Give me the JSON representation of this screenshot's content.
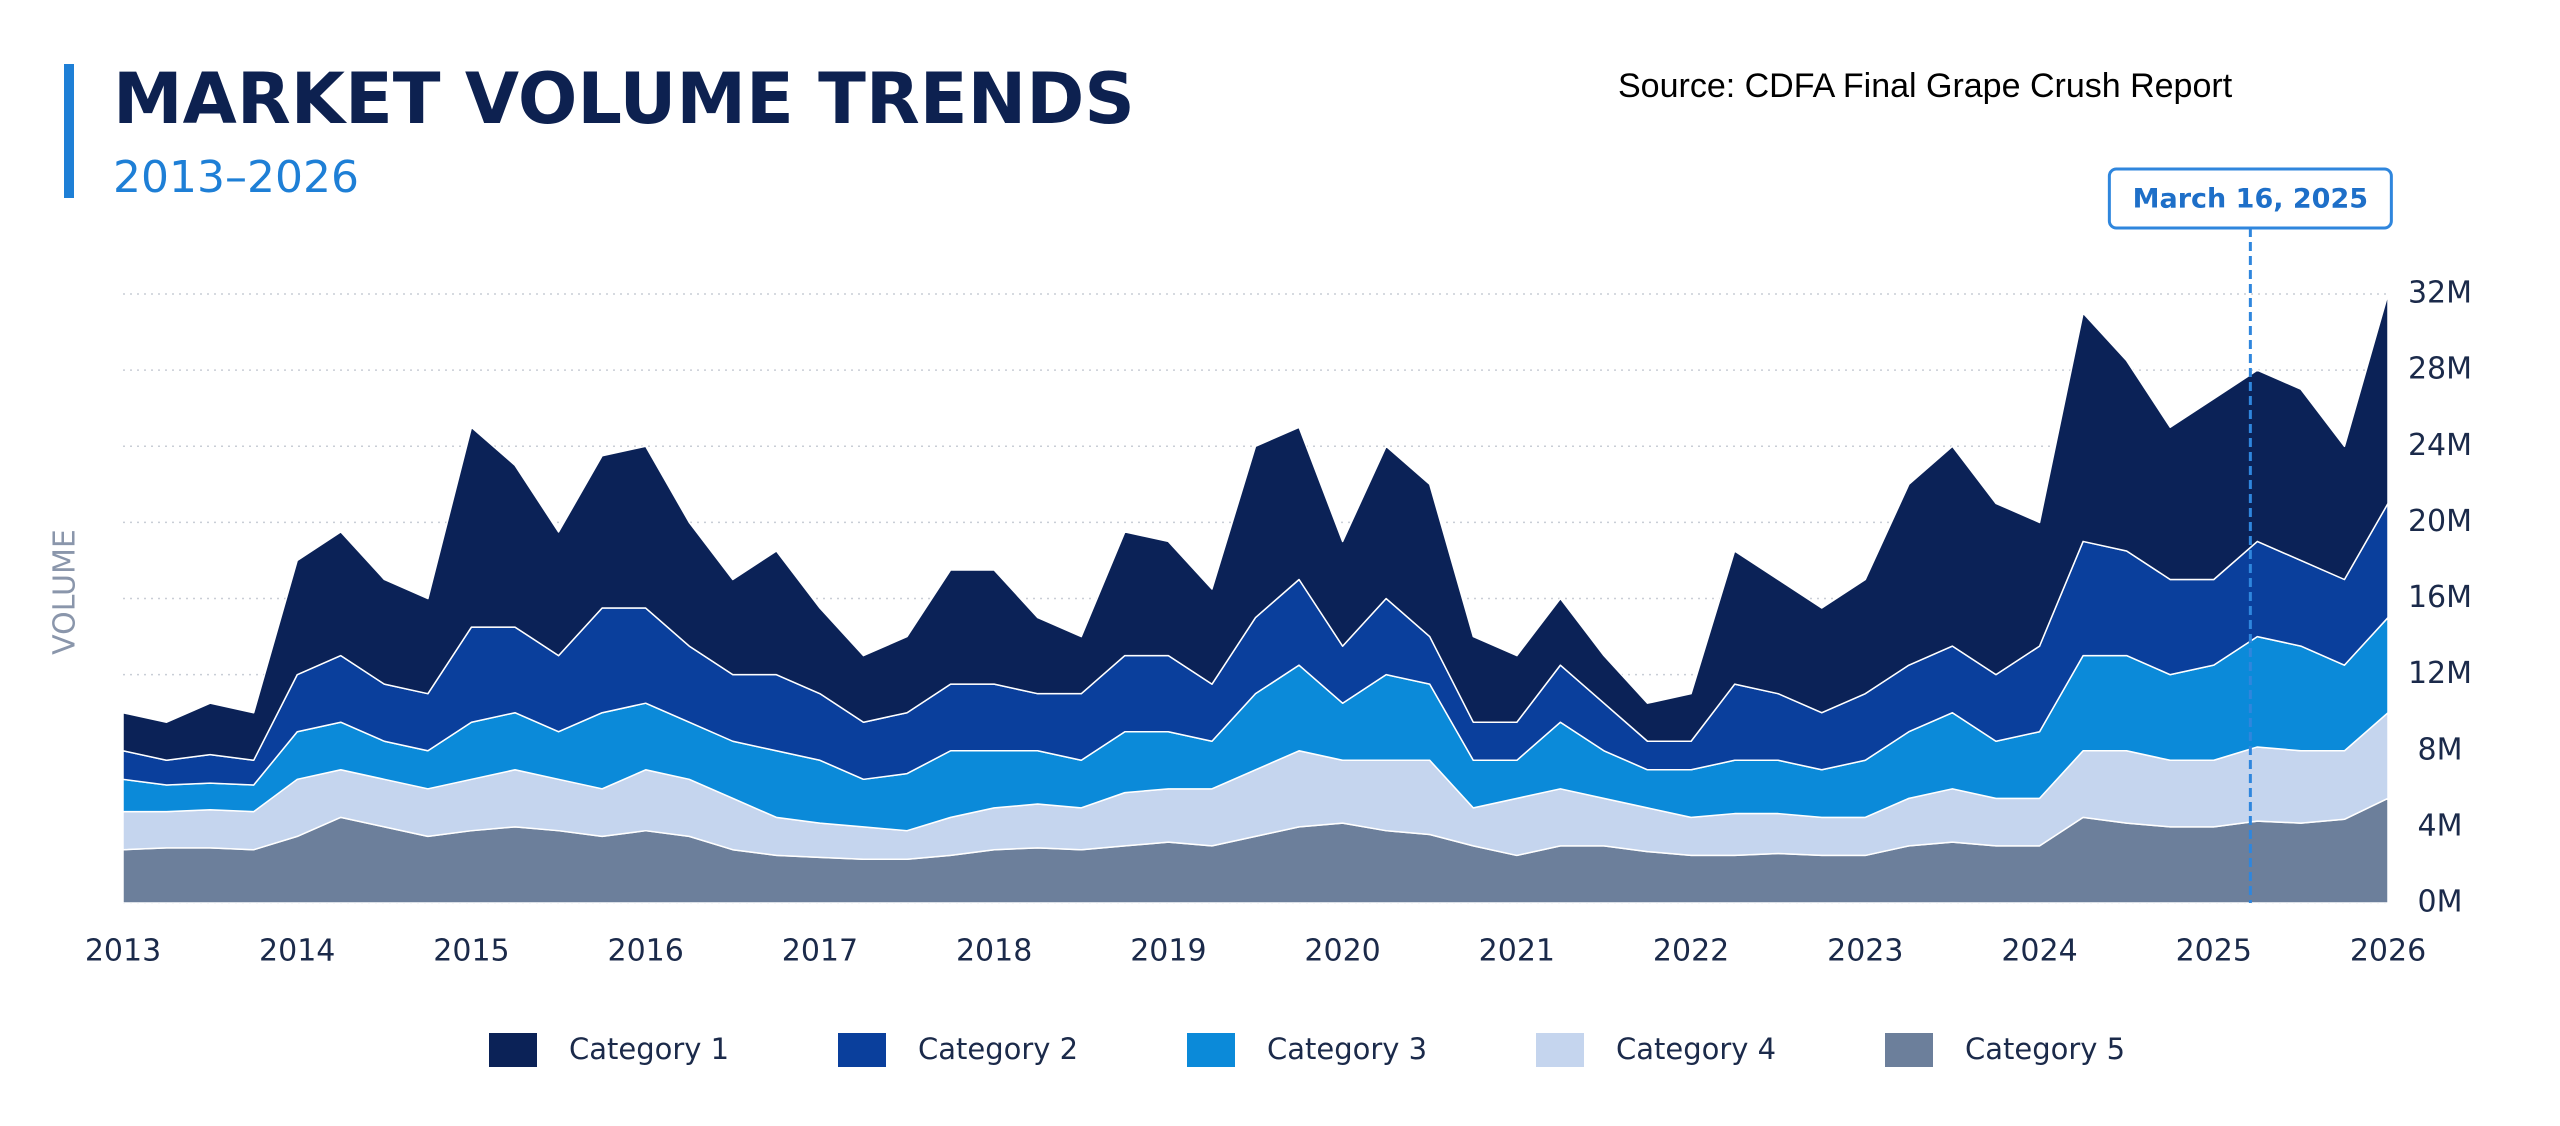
{
  "chart_data": {
    "type": "stacked-area",
    "title": "MARKET VOLUME TRENDS",
    "subtitle": "2013–2026",
    "source": "Source: CDFA Final Grape Crush Report",
    "y_label": "VOLUME",
    "annotation": {
      "label": "March 16, 2025",
      "x": 2025.21
    },
    "x": [
      2013,
      2013.25,
      2013.5,
      2013.75,
      2014,
      2014.25,
      2014.5,
      2014.75,
      2015,
      2015.25,
      2015.5,
      2015.75,
      2016,
      2016.25,
      2016.5,
      2016.75,
      2017,
      2017.25,
      2017.5,
      2017.75,
      2018,
      2018.25,
      2018.5,
      2018.75,
      2019,
      2019.25,
      2019.5,
      2019.75,
      2020,
      2020.25,
      2020.5,
      2020.75,
      2021,
      2021.25,
      2021.5,
      2021.75,
      2022,
      2022.25,
      2022.5,
      2022.75,
      2023,
      2023.25,
      2023.5,
      2023.75,
      2024,
      2024.25,
      2024.5,
      2024.75,
      2025,
      2025.25,
      2025.5,
      2025.75,
      2026
    ],
    "xlim": [
      2013,
      2026
    ],
    "xticks": [
      2013,
      2014,
      2015,
      2016,
      2017,
      2018,
      2019,
      2020,
      2021,
      2022,
      2023,
      2024,
      2025,
      2026
    ],
    "ylim": [
      0,
      34
    ],
    "yticks": [
      {
        "value": 0,
        "label": "0M"
      },
      {
        "value": 4,
        "label": "4M"
      },
      {
        "value": 8,
        "label": "8M"
      },
      {
        "value": 12,
        "label": "12M"
      },
      {
        "value": 16,
        "label": "16M"
      },
      {
        "value": 20,
        "label": "20M"
      },
      {
        "value": 24,
        "label": "24M"
      },
      {
        "value": 28,
        "label": "28M"
      },
      {
        "value": 32,
        "label": "32M"
      }
    ],
    "grid": true,
    "legend": "bottom",
    "series": [
      {
        "name": "Category 5",
        "color": "#6c7f9b",
        "values": [
          2.8,
          2.9,
          2.9,
          2.8,
          3.5,
          4.5,
          4,
          3.5,
          3.8,
          4,
          3.8,
          3.5,
          3.8,
          3.5,
          2.8,
          2.5,
          2.4,
          2.3,
          2.3,
          2.5,
          2.8,
          2.9,
          2.8,
          3,
          3.2,
          3,
          3.5,
          4,
          4.2,
          3.8,
          3.6,
          3,
          2.5,
          3,
          3,
          2.7,
          2.5,
          2.5,
          2.6,
          2.5,
          2.5,
          3,
          3.2,
          3,
          3,
          4.5,
          4.2,
          4,
          4,
          4.3,
          4.2,
          4.4,
          5.5
        ]
      },
      {
        "name": "Category 4",
        "color": "#c5d5ee",
        "values": [
          2.0,
          1.9,
          2.0,
          2.0,
          3.0,
          2.5,
          2.5,
          2.5,
          2.7,
          3.0,
          2.7,
          2.5,
          3.2,
          3.0,
          2.7,
          2.0,
          1.8,
          1.7,
          1.5,
          2.0,
          2.2,
          2.3,
          2.2,
          2.8,
          2.8,
          3.0,
          3.5,
          4.0,
          3.3,
          3.7,
          3.9,
          2.0,
          3.0,
          3.0,
          2.5,
          2.3,
          2.0,
          2.2,
          2.1,
          2.0,
          2.0,
          2.5,
          2.8,
          2.5,
          2.5,
          3.5,
          3.8,
          3.5,
          3.5,
          3.9,
          3.8,
          3.6,
          4.5
        ]
      },
      {
        "name": "Category 3",
        "color": "#0b8ad9",
        "values": [
          1.7,
          1.4,
          1.4,
          1.4,
          2.5,
          2.5,
          2.0,
          2.0,
          3.0,
          3.0,
          2.5,
          4.0,
          3.5,
          3.0,
          3.0,
          3.5,
          3.3,
          2.5,
          3.0,
          3.5,
          3.0,
          2.8,
          2.5,
          3.2,
          3.0,
          2.5,
          4.0,
          4.5,
          3.0,
          4.5,
          4.0,
          2.5,
          2.0,
          3.5,
          2.5,
          2.0,
          2.5,
          2.8,
          2.8,
          2.5,
          3.0,
          3.5,
          4.0,
          3.0,
          3.5,
          5.0,
          5.0,
          4.5,
          5.0,
          5.8,
          5.5,
          4.5,
          5.0
        ]
      },
      {
        "name": "Category 2",
        "color": "#0a3f9c",
        "values": [
          1.5,
          1.3,
          1.5,
          1.3,
          3.0,
          3.5,
          3.0,
          3.0,
          5.0,
          4.5,
          4.0,
          5.5,
          5.0,
          4.0,
          3.5,
          4.0,
          3.5,
          3.0,
          3.2,
          3.5,
          3.5,
          3.0,
          3.5,
          4.0,
          4.0,
          3.0,
          4.0,
          4.5,
          3.0,
          4.0,
          2.5,
          2.0,
          2.0,
          3.0,
          2.5,
          1.5,
          1.5,
          4.0,
          3.5,
          3.0,
          3.5,
          3.5,
          3.5,
          3.5,
          4.5,
          6.0,
          5.5,
          5.0,
          4.5,
          5.0,
          4.5,
          4.5,
          6.0
        ]
      },
      {
        "name": "Category 1",
        "color": "#0b2257",
        "values": [
          2.0,
          2.0,
          2.7,
          2.5,
          6.0,
          6.5,
          5.5,
          5.0,
          10.5,
          8.5,
          6.5,
          8.0,
          8.5,
          6.5,
          5.0,
          6.5,
          4.5,
          3.5,
          4.0,
          6.0,
          6.0,
          4.0,
          3.0,
          6.5,
          6.0,
          5.0,
          9.0,
          8.0,
          5.5,
          8.0,
          8.0,
          4.5,
          3.5,
          3.5,
          2.5,
          2.0,
          2.5,
          7.0,
          6.0,
          5.5,
          6.0,
          9.5,
          10.5,
          9.0,
          6.5,
          12.0,
          10.0,
          8.0,
          9.5,
          9.0,
          9.0,
          7.0,
          11.0
        ]
      }
    ]
  }
}
